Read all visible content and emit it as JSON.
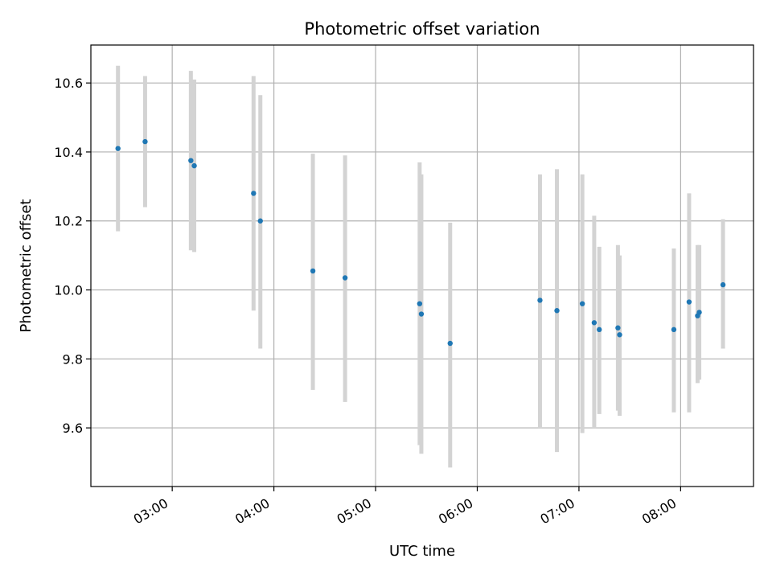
{
  "chart_data": {
    "type": "scatter",
    "title": "Photometric offset variation",
    "xlabel": "UTC time",
    "ylabel": "Photometric offset",
    "x_is_time": true,
    "xlim": [
      "02:12",
      "08:43"
    ],
    "ylim": [
      9.43,
      10.71
    ],
    "xticks": [
      "03:00",
      "04:00",
      "05:00",
      "06:00",
      "07:00",
      "08:00"
    ],
    "yticks": [
      9.6,
      9.8,
      10.0,
      10.2,
      10.4,
      10.6
    ],
    "ytick_labels": [
      "9.6",
      "9.8",
      "10.0",
      "10.2",
      "10.4",
      "10.6"
    ],
    "grid": true,
    "point_color": "#1f77b4",
    "errorbar_color": "#d3d3d3",
    "points": [
      {
        "x": "02:28",
        "y": 10.41,
        "ylo": 10.17,
        "yhi": 10.65
      },
      {
        "x": "02:44",
        "y": 10.43,
        "ylo": 10.24,
        "yhi": 10.62
      },
      {
        "x": "03:11",
        "y": 10.375,
        "ylo": 10.115,
        "yhi": 10.635
      },
      {
        "x": "03:13",
        "y": 10.36,
        "ylo": 10.11,
        "yhi": 10.61
      },
      {
        "x": "03:48",
        "y": 10.28,
        "ylo": 9.94,
        "yhi": 10.62
      },
      {
        "x": "03:52",
        "y": 10.2,
        "ylo": 9.83,
        "yhi": 10.565
      },
      {
        "x": "04:23",
        "y": 10.055,
        "ylo": 9.71,
        "yhi": 10.395
      },
      {
        "x": "04:42",
        "y": 10.035,
        "ylo": 9.675,
        "yhi": 10.39
      },
      {
        "x": "05:26",
        "y": 9.96,
        "ylo": 9.55,
        "yhi": 10.37
      },
      {
        "x": "05:27",
        "y": 9.93,
        "ylo": 9.525,
        "yhi": 10.335
      },
      {
        "x": "05:44",
        "y": 9.845,
        "ylo": 9.485,
        "yhi": 10.195
      },
      {
        "x": "06:37",
        "y": 9.97,
        "ylo": 9.6,
        "yhi": 10.335
      },
      {
        "x": "06:47",
        "y": 9.94,
        "ylo": 9.53,
        "yhi": 10.35
      },
      {
        "x": "07:02",
        "y": 9.96,
        "ylo": 9.585,
        "yhi": 10.335
      },
      {
        "x": "07:09",
        "y": 9.905,
        "ylo": 9.6,
        "yhi": 10.215
      },
      {
        "x": "07:12",
        "y": 9.885,
        "ylo": 9.64,
        "yhi": 10.125
      },
      {
        "x": "07:23",
        "y": 9.89,
        "ylo": 9.65,
        "yhi": 10.13
      },
      {
        "x": "07:24",
        "y": 9.87,
        "ylo": 9.635,
        "yhi": 10.1
      },
      {
        "x": "07:56",
        "y": 9.885,
        "ylo": 9.645,
        "yhi": 10.12
      },
      {
        "x": "08:05",
        "y": 9.965,
        "ylo": 9.645,
        "yhi": 10.28
      },
      {
        "x": "08:10",
        "y": 9.925,
        "ylo": 9.73,
        "yhi": 10.13
      },
      {
        "x": "08:11",
        "y": 9.935,
        "ylo": 9.74,
        "yhi": 10.13
      },
      {
        "x": "08:25",
        "y": 10.015,
        "ylo": 9.83,
        "yhi": 10.205
      }
    ]
  }
}
